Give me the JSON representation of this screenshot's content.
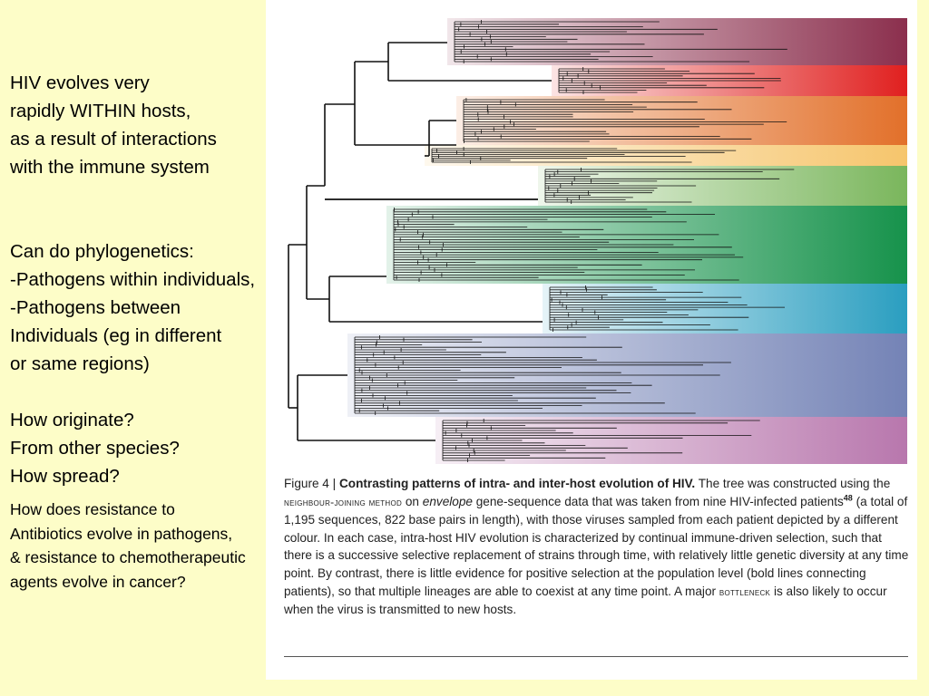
{
  "slide": {
    "intro_lines": [
      "HIV evolves very",
      "rapidly WITHIN hosts,",
      "as a result of interactions",
      "with the immune system"
    ],
    "phylo_lines": [
      "Can do phylogenetics:",
      "-Pathogens within individuals,",
      "-Pathogens between",
      "Individuals (eg in different",
      "or same regions)"
    ],
    "question_lines": [
      "How originate?",
      "From other species?",
      "How spread?"
    ],
    "resistance_lines": [
      "How does resistance to",
      "Antibiotics evolve in pathogens,",
      "& resistance to chemotherapeutic",
      "agents evolve in cancer?"
    ]
  },
  "figure": {
    "label": "Figure 4 |",
    "title": "Contrasting patterns of intra- and inter-host evolution of HIV.",
    "caption_1": "The tree was constructed using the",
    "method": "neighbour-joining method",
    "caption_2": "on",
    "gene": "envelope",
    "caption_3": "gene-sequence data that was taken from nine HIV-infected patients",
    "ref": "48",
    "caption_4": "(a total of 1,195 sequences, 822 base pairs in length), with those viruses sampled from each patient depicted by a different colour. In each case, intra-host HIV evolution is characterized by continual immune-driven selection, such that there is a successive selective replacement of strains through time, with relatively little genetic diversity at any time point. By contrast, there is little evidence for positive selection at the population level (bold lines connecting patients), so that multiple lineages are able to coexist at any time point. A major",
    "bottleneck": "bottleneck",
    "caption_5": "is also likely to occur when the virus is transmitted to new hosts.",
    "patient_colors": [
      "#8b2f4d",
      "#e0201f",
      "#e2702a",
      "#f6c56c",
      "#7ab65c",
      "#16924b",
      "#2a9ec0",
      "#7483b6",
      "#b877ad"
    ]
  }
}
